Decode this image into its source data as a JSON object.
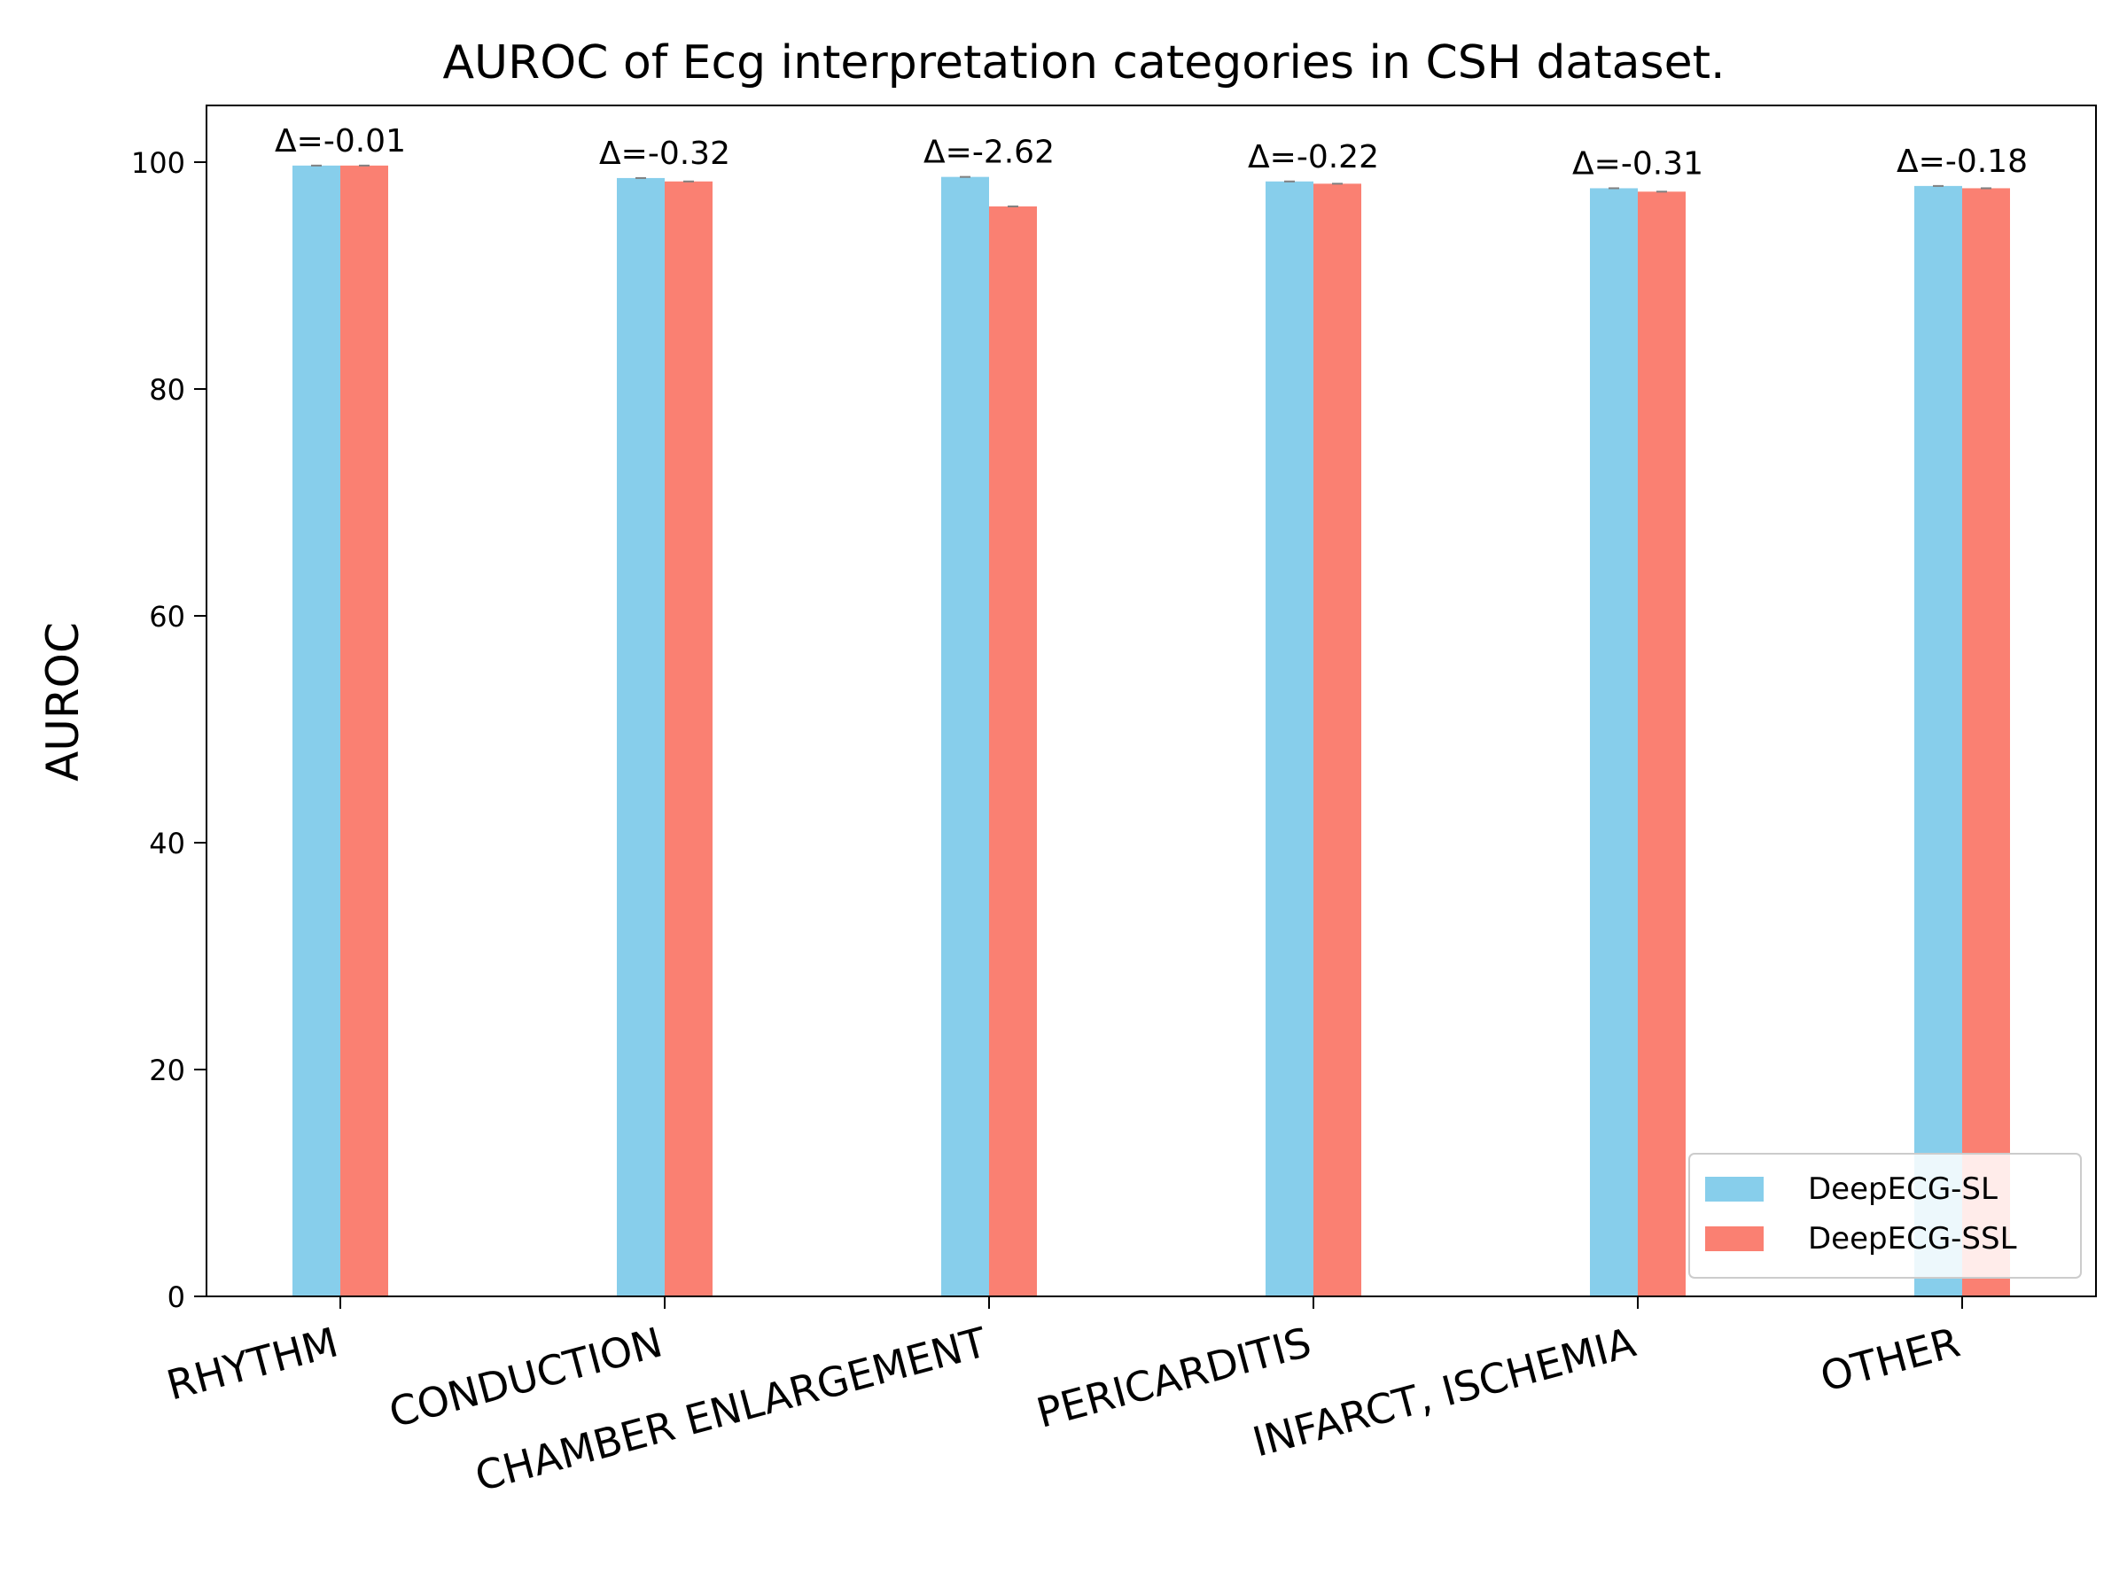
{
  "chart_data": {
    "type": "bar",
    "title": "AUROC of Ecg interpretation categories in CSH dataset.",
    "xlabel": "",
    "ylabel": "AUROC",
    "ylim": [
      0,
      105
    ],
    "yticks": [
      0,
      20,
      40,
      60,
      80,
      100
    ],
    "grid": false,
    "legend_position": "lower-right",
    "categories": [
      "RHYTHM",
      "CONDUCTION",
      "CHAMBER ENLARGEMENT",
      "PERICARDITIS",
      "INFARCT, ISCHEMIA",
      "OTHER"
    ],
    "series": [
      {
        "name": "DeepECG-SL",
        "color": "#87CEEB",
        "values": [
          99.7,
          98.6,
          98.7,
          98.3,
          97.7,
          97.9
        ]
      },
      {
        "name": "DeepECG-SSL",
        "color": "#FA8072",
        "values": [
          99.7,
          98.3,
          96.1,
          98.1,
          97.4,
          97.7
        ]
      }
    ],
    "annotations": [
      "Δ=-0.01",
      "Δ=-0.32",
      "Δ=-2.62",
      "Δ=-0.22",
      "Δ=-0.31",
      "Δ=-0.18"
    ]
  }
}
